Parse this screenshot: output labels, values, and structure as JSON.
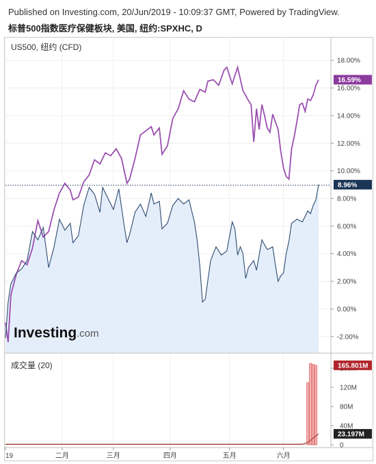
{
  "header": {
    "published": "Published on Investing.com, 20/Jun/2019 - 10:09:37 GMT, Powered by TradingView.",
    "instrument": "标普500指数医疗保健板块, 美国, 纽约:SPXHC, D"
  },
  "logo": {
    "main": "Investing",
    "suffix": ".com"
  },
  "colors": {
    "compare": "#9b4fb0",
    "main_line": "#2c4a6e",
    "main_fill": "#e4eefb",
    "volume_bar": "#f2b2b2",
    "volume_edge": "#d45050",
    "badge_compare": "#8c3b9e",
    "badge_main": "#1b3556",
    "badge_vol": "#b0242a",
    "badge_vol_ma": "#222222"
  },
  "chart_data": [
    {
      "type": "line",
      "pane": "price",
      "title": "US500, 纽约 (CFD)",
      "ylabel": "",
      "ylim": [
        -3.2,
        19.4
      ],
      "y_ticks": [
        -2,
        0,
        2,
        4,
        6,
        8,
        10,
        12,
        14,
        16,
        18
      ],
      "y_tick_labels": [
        "-2.00%",
        "0.00%",
        "2.00%",
        "4.00%",
        "6.00%",
        "8.00%",
        "10.00%",
        "12.00%",
        "14.00%",
        "16.00%",
        "18.00%"
      ],
      "x_tick_labels": [
        "19",
        "二月",
        "三月",
        "四月",
        "五月",
        "六月"
      ],
      "x_tick_index": [
        0,
        21,
        40,
        61,
        83,
        103
      ],
      "n_points": 117,
      "series": [
        {
          "name": "US500, 纽约 (CFD)",
          "last_label": "16.59%",
          "anchors": [
            [
              0,
              -1.0
            ],
            [
              1,
              -2.4
            ],
            [
              2,
              1.0
            ],
            [
              4,
              2.5
            ],
            [
              6,
              3.5
            ],
            [
              8,
              3.2
            ],
            [
              10,
              4.4
            ],
            [
              12,
              6.4
            ],
            [
              14,
              5.2
            ],
            [
              16,
              5.6
            ],
            [
              18,
              7.2
            ],
            [
              20,
              8.4
            ],
            [
              22,
              9.1
            ],
            [
              24,
              8.6
            ],
            [
              25,
              7.9
            ],
            [
              27,
              8.1
            ],
            [
              29,
              9.2
            ],
            [
              31,
              9.7
            ],
            [
              33,
              10.8
            ],
            [
              35,
              10.5
            ],
            [
              37,
              11.3
            ],
            [
              39,
              11.1
            ],
            [
              41,
              11.6
            ],
            [
              43,
              10.9
            ],
            [
              45,
              9.1
            ],
            [
              46,
              9.4
            ],
            [
              48,
              10.9
            ],
            [
              50,
              12.6
            ],
            [
              52,
              12.9
            ],
            [
              54,
              13.2
            ],
            [
              55,
              12.6
            ],
            [
              57,
              13.1
            ],
            [
              58,
              11.2
            ],
            [
              60,
              11.8
            ],
            [
              62,
              13.8
            ],
            [
              64,
              14.5
            ],
            [
              66,
              15.8
            ],
            [
              68,
              15.2
            ],
            [
              70,
              15.0
            ],
            [
              72,
              15.9
            ],
            [
              74,
              15.7
            ],
            [
              75,
              16.5
            ],
            [
              77,
              16.6
            ],
            [
              79,
              16.2
            ],
            [
              81,
              17.3
            ],
            [
              82,
              17.5
            ],
            [
              84,
              16.3
            ],
            [
              86,
              17.5
            ],
            [
              88,
              15.8
            ],
            [
              90,
              15.1
            ],
            [
              91,
              14.8
            ],
            [
              92,
              12.1
            ],
            [
              93,
              14.5
            ],
            [
              94,
              13.0
            ],
            [
              95,
              14.8
            ],
            [
              96,
              14.0
            ],
            [
              97,
              13.1
            ],
            [
              98,
              12.8
            ],
            [
              99,
              14.1
            ],
            [
              101,
              13.0
            ],
            [
              102,
              11.4
            ],
            [
              103,
              10.2
            ],
            [
              104,
              9.6
            ],
            [
              105,
              9.4
            ],
            [
              106,
              11.6
            ],
            [
              107,
              12.5
            ],
            [
              108,
              13.6
            ],
            [
              109,
              14.8
            ],
            [
              110,
              14.9
            ],
            [
              111,
              14.3
            ],
            [
              112,
              15.2
            ],
            [
              113,
              15.1
            ],
            [
              114,
              15.5
            ],
            [
              115,
              16.2
            ],
            [
              116,
              16.6
            ]
          ]
        },
        {
          "name": "标普500指数医疗保健板块",
          "last_label": "8.96%",
          "anchors": [
            [
              0,
              -2.1
            ],
            [
              1,
              0.5
            ],
            [
              2,
              1.8
            ],
            [
              4,
              2.6
            ],
            [
              6,
              2.9
            ],
            [
              8,
              3.5
            ],
            [
              10,
              5.6
            ],
            [
              12,
              5.0
            ],
            [
              14,
              5.9
            ],
            [
              16,
              3.0
            ],
            [
              18,
              4.5
            ],
            [
              20,
              6.5
            ],
            [
              22,
              5.7
            ],
            [
              24,
              6.2
            ],
            [
              25,
              4.8
            ],
            [
              27,
              5.3
            ],
            [
              29,
              7.5
            ],
            [
              31,
              8.8
            ],
            [
              33,
              8.3
            ],
            [
              35,
              7.0
            ],
            [
              36,
              8.8
            ],
            [
              38,
              8.0
            ],
            [
              40,
              7.2
            ],
            [
              42,
              8.7
            ],
            [
              44,
              6.0
            ],
            [
              45,
              4.8
            ],
            [
              46,
              5.4
            ],
            [
              48,
              7.0
            ],
            [
              50,
              7.6
            ],
            [
              52,
              6.7
            ],
            [
              54,
              8.4
            ],
            [
              55,
              7.6
            ],
            [
              57,
              7.8
            ],
            [
              58,
              5.8
            ],
            [
              60,
              6.2
            ],
            [
              62,
              7.5
            ],
            [
              64,
              8.0
            ],
            [
              66,
              7.6
            ],
            [
              68,
              7.9
            ],
            [
              70,
              6.3
            ],
            [
              71,
              5.0
            ],
            [
              72,
              3.1
            ],
            [
              73,
              0.5
            ],
            [
              74,
              0.7
            ],
            [
              76,
              3.5
            ],
            [
              78,
              4.5
            ],
            [
              80,
              3.9
            ],
            [
              82,
              4.2
            ],
            [
              84,
              6.3
            ],
            [
              85,
              5.8
            ],
            [
              86,
              3.9
            ],
            [
              87,
              4.5
            ],
            [
              88,
              4.0
            ],
            [
              89,
              2.2
            ],
            [
              90,
              3.0
            ],
            [
              92,
              3.5
            ],
            [
              93,
              2.8
            ],
            [
              95,
              5.0
            ],
            [
              97,
              4.3
            ],
            [
              99,
              4.5
            ],
            [
              100,
              3.2
            ],
            [
              101,
              2.0
            ],
            [
              102,
              2.4
            ],
            [
              103,
              2.6
            ],
            [
              104,
              4.0
            ],
            [
              105,
              4.9
            ],
            [
              106,
              6.2
            ],
            [
              108,
              6.5
            ],
            [
              110,
              6.3
            ],
            [
              112,
              7.1
            ],
            [
              113,
              6.9
            ],
            [
              114,
              7.5
            ],
            [
              115,
              7.9
            ],
            [
              116,
              9.0
            ]
          ]
        }
      ],
      "reference_line": 8.96
    },
    {
      "type": "bar",
      "pane": "volume",
      "title": "成交量 (20)",
      "ylim": [
        0,
        180
      ],
      "y_ticks": [
        0,
        40,
        80,
        120,
        160
      ],
      "y_tick_labels": [
        "0",
        "40M",
        "80M",
        "120M",
        "160M"
      ],
      "series": [
        {
          "name": "成交量",
          "last_label": "165.801M",
          "bars": [
            [
              112,
              130
            ],
            [
              113,
              170
            ],
            [
              114,
              168
            ],
            [
              115,
              166
            ]
          ]
        },
        {
          "name": "MA 20",
          "last_label": "23.197M",
          "anchors": [
            [
              0,
              1
            ],
            [
              110,
              1
            ],
            [
              112,
              5
            ],
            [
              114,
              14
            ],
            [
              116,
              23
            ]
          ]
        }
      ]
    }
  ]
}
